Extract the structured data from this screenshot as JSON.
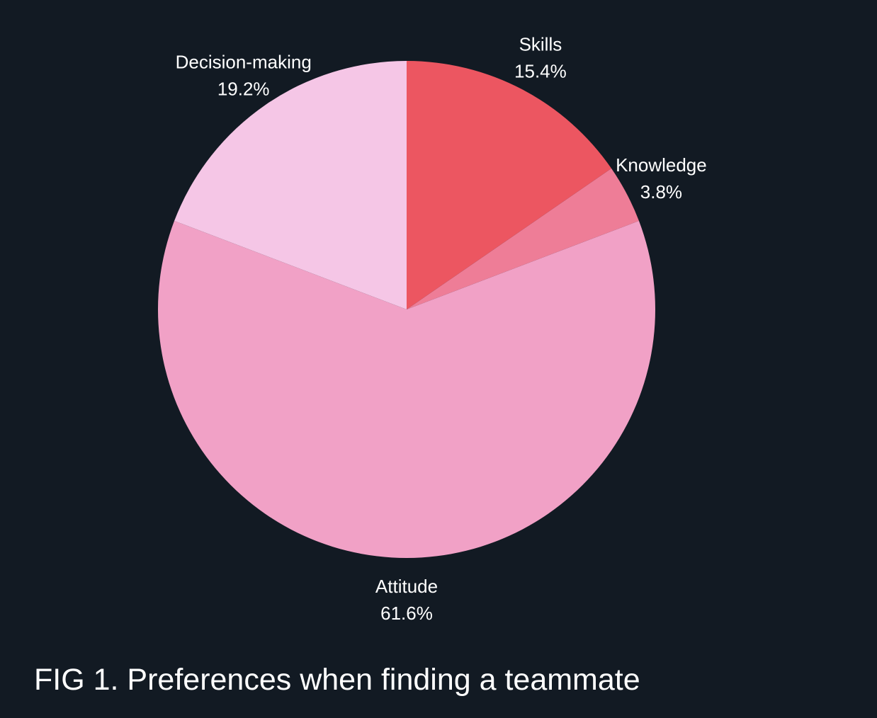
{
  "caption": "FIG 1. Preferences when finding a teammate",
  "chart_data": {
    "type": "pie",
    "title": "",
    "start": "12 o'clock",
    "direction": "clockwise",
    "legend": "none",
    "background": "#121a23",
    "slices": [
      {
        "label": "Skills",
        "value": 15.4,
        "value_label": "15.4%",
        "color": "#ec5661"
      },
      {
        "label": "Knowledge",
        "value": 3.8,
        "value_label": "3.8%",
        "color": "#ee7d97"
      },
      {
        "label": "Attitude",
        "value": 61.6,
        "value_label": "61.6%",
        "color": "#f1a1c6"
      },
      {
        "label": "Decision-making",
        "value": 19.2,
        "value_label": "19.2%",
        "color": "#f5c6e6"
      }
    ]
  }
}
